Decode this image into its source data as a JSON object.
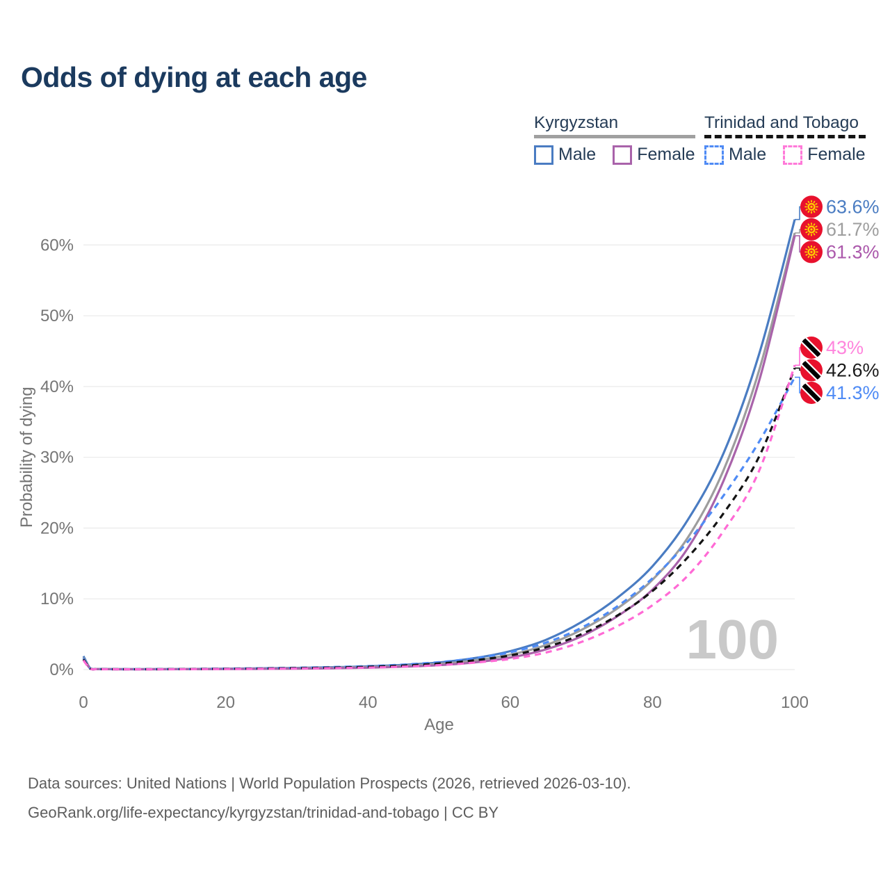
{
  "title": "Odds of dying at each age",
  "colors": {
    "title_text": "#1b3a5e",
    "legend_text": "#253c56",
    "axis_text": "#757575",
    "gridline": "#ebebeb",
    "watermark": "#c9c9c9",
    "footer_text": "#5d5d5d",
    "flag_red": "#e8112d",
    "flag_yellow": "#ffcc00"
  },
  "legend": {
    "groups": [
      {
        "name": "Kyrgyzstan",
        "underline_style": "solid",
        "underline_color": "#a0a0a0",
        "items": [
          {
            "label": "Male",
            "color": "#4a7cc2",
            "dashed": false
          },
          {
            "label": "Female",
            "color": "#a963aa",
            "dashed": false
          }
        ]
      },
      {
        "name": "Trinidad and Tobago",
        "underline_style": "dashed",
        "underline_color": "#141414",
        "items": [
          {
            "label": "Male",
            "color": "#4f8bf5",
            "dashed": true
          },
          {
            "label": "Female",
            "color": "#ff7ad9",
            "dashed": true
          }
        ]
      }
    ]
  },
  "chart_data": {
    "type": "line",
    "title": "Odds of dying at each age",
    "xlabel": "Age",
    "ylabel": "Probability of dying",
    "xlim": [
      0,
      100
    ],
    "ylim": [
      0,
      66
    ],
    "x_ticks": [
      0,
      20,
      40,
      60,
      80,
      100
    ],
    "y_ticks": [
      {
        "value": 0,
        "label": "0%"
      },
      {
        "value": 10,
        "label": "10%"
      },
      {
        "value": 20,
        "label": "20%"
      },
      {
        "value": 30,
        "label": "30%"
      },
      {
        "value": 40,
        "label": "40%"
      },
      {
        "value": 50,
        "label": "50%"
      },
      {
        "value": 60,
        "label": "60%"
      }
    ],
    "grid": "horizontal",
    "legend_position": "top-right",
    "watermark": "100",
    "x": [
      0,
      1,
      2,
      5,
      10,
      15,
      20,
      25,
      30,
      35,
      40,
      45,
      50,
      55,
      60,
      65,
      70,
      75,
      80,
      85,
      90,
      95,
      100
    ],
    "series": [
      {
        "name": "Kyrgyzstan Male",
        "country": "Kyrgyzstan",
        "sex": "Male",
        "color": "#4a7cc2",
        "label_color": "#4a7cc2",
        "dashed": false,
        "flag": "kyrgyzstan",
        "end_label": "63.6%",
        "values": [
          1.9,
          0.15,
          0.09,
          0.06,
          0.06,
          0.09,
          0.13,
          0.18,
          0.24,
          0.33,
          0.46,
          0.67,
          1.0,
          1.62,
          2.6,
          4.2,
          6.7,
          10.1,
          14.6,
          21.2,
          30.6,
          44.6,
          63.6
        ]
      },
      {
        "name": "Kyrgyzstan Both sexes",
        "country": "Kyrgyzstan",
        "sex": "Both sexes",
        "color": "#9d9d9d",
        "label_color": "#9e9e9e",
        "dashed": false,
        "flag": "kyrgyzstan",
        "end_label": "61.7%",
        "values": [
          1.7,
          0.13,
          0.08,
          0.05,
          0.05,
          0.07,
          0.1,
          0.14,
          0.19,
          0.26,
          0.36,
          0.53,
          0.8,
          1.3,
          2.1,
          3.45,
          5.6,
          8.6,
          12.7,
          18.7,
          28.2,
          42.3,
          61.7
        ]
      },
      {
        "name": "Kyrgyzstan Female",
        "country": "Kyrgyzstan",
        "sex": "Female",
        "color": "#a963aa",
        "label_color": "#ab58ab",
        "dashed": false,
        "flag": "kyrgyzstan",
        "end_label": "61.3%",
        "values": [
          1.5,
          0.11,
          0.07,
          0.045,
          0.045,
          0.06,
          0.08,
          0.1,
          0.14,
          0.19,
          0.27,
          0.41,
          0.63,
          1.02,
          1.7,
          2.85,
          4.7,
          7.5,
          11.3,
          17.2,
          26.7,
          40.8,
          61.3
        ]
      },
      {
        "name": "Trinidad and Tobago Male",
        "country": "Trinidad and Tobago",
        "sex": "Male",
        "color": "#4f8bf5",
        "label_color": "#4f8bf5",
        "dashed": true,
        "flag": "trinidad-tobago",
        "end_label": "41.3%",
        "values": [
          1.6,
          0.12,
          0.08,
          0.05,
          0.06,
          0.09,
          0.14,
          0.19,
          0.26,
          0.35,
          0.49,
          0.71,
          1.05,
          1.6,
          2.45,
          3.8,
          5.9,
          8.9,
          12.9,
          18.1,
          24.6,
          32.2,
          41.3
        ]
      },
      {
        "name": "Trinidad and Tobago Both sexes",
        "country": "Trinidad and Tobago",
        "sex": "Both sexes",
        "color": "#141414",
        "label_color": "#1a1a1a",
        "dashed": true,
        "flag": "trinidad-tobago",
        "end_label": "42.6%",
        "values": [
          1.45,
          0.11,
          0.07,
          0.045,
          0.05,
          0.075,
          0.11,
          0.15,
          0.21,
          0.28,
          0.39,
          0.57,
          0.86,
          1.32,
          2.0,
          3.15,
          5.0,
          7.6,
          11.1,
          15.9,
          22.1,
          30.1,
          42.6
        ]
      },
      {
        "name": "Trinidad and Tobago Female",
        "country": "Trinidad and Tobago",
        "sex": "Female",
        "color": "#ff6ad5",
        "label_color": "#ff85dd",
        "dashed": true,
        "flag": "trinidad-tobago",
        "end_label": "43%",
        "values": [
          1.3,
          0.1,
          0.06,
          0.04,
          0.04,
          0.06,
          0.08,
          0.11,
          0.15,
          0.2,
          0.28,
          0.42,
          0.63,
          0.98,
          1.5,
          2.4,
          3.9,
          6.1,
          9.1,
          13.3,
          19.6,
          28.1,
          43.0
        ]
      }
    ]
  },
  "footer": {
    "line1": "Data sources: United Nations | World Population Prospects (2026, retrieved 2026-03-10).",
    "line2": "GeoRank.org/life-expectancy/kyrgyzstan/trinidad-and-tobago | CC BY"
  }
}
